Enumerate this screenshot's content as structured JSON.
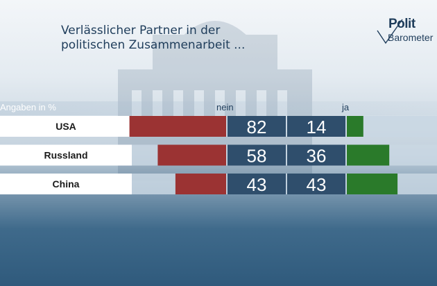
{
  "chart_data": {
    "type": "bar",
    "title": "Verlässlicher Partner in der politischen Zusammenarbeit ...",
    "unit_label": "Angaben in %",
    "categories": [
      "USA",
      "Russland",
      "China"
    ],
    "series": [
      {
        "name": "nein",
        "values": [
          82,
          58,
          43
        ]
      },
      {
        "name": "ja",
        "values": [
          14,
          36,
          43
        ]
      }
    ],
    "colors": {
      "nein": "#9b3333",
      "ja": "#2a7a2a",
      "value_box": "#2f4e6c"
    },
    "ylim": [
      0,
      100
    ]
  },
  "logo": {
    "line1": "Polit",
    "line2": "Barometer"
  }
}
